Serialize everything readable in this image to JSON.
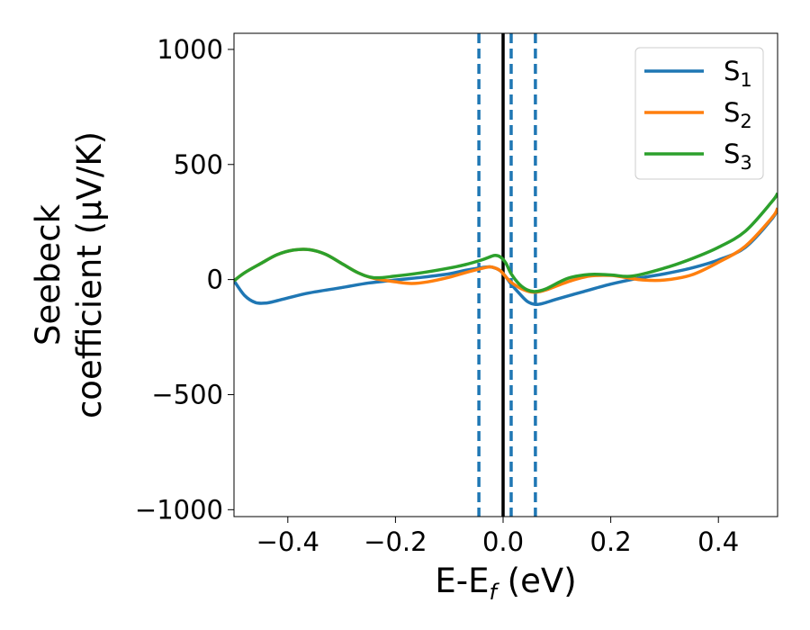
{
  "chart_data": {
    "type": "line",
    "xlabel": {
      "main": "E-E",
      "sub": "f",
      "tail": " (eV)"
    },
    "ylabel": {
      "line1": "Seebeck",
      "line2": "coefficient  (μV/K)"
    },
    "xlim": [
      -0.5,
      0.51
    ],
    "ylim": [
      -1030,
      1070
    ],
    "xticks": [
      {
        "value": -0.4,
        "label": "−0.4"
      },
      {
        "value": -0.2,
        "label": "−0.2"
      },
      {
        "value": 0.0,
        "label": "0.0"
      },
      {
        "value": 0.2,
        "label": "0.2"
      },
      {
        "value": 0.4,
        "label": "0.4"
      }
    ],
    "yticks": [
      {
        "value": 1000,
        "label": "1000"
      },
      {
        "value": 500,
        "label": "500"
      },
      {
        "value": 0,
        "label": "0"
      },
      {
        "value": -500,
        "label": "−500"
      },
      {
        "value": -1000,
        "label": "−1000"
      }
    ],
    "grid": false,
    "legend_position": "top-right",
    "series": [
      {
        "name": "S",
        "sub": "1",
        "color": "#1f77b4",
        "points": [
          [
            -0.5,
            -5
          ],
          [
            -0.48,
            -70
          ],
          [
            -0.46,
            -100
          ],
          [
            -0.44,
            -102
          ],
          [
            -0.42,
            -92
          ],
          [
            -0.4,
            -80
          ],
          [
            -0.36,
            -58
          ],
          [
            -0.3,
            -35
          ],
          [
            -0.25,
            -15
          ],
          [
            -0.2,
            -2
          ],
          [
            -0.15,
            10
          ],
          [
            -0.1,
            25
          ],
          [
            -0.07,
            40
          ],
          [
            -0.04,
            52
          ],
          [
            -0.025,
            55
          ],
          [
            -0.015,
            50
          ],
          [
            -0.005,
            38
          ],
          [
            0.005,
            12
          ],
          [
            0.015,
            -20
          ],
          [
            0.03,
            -60
          ],
          [
            0.045,
            -95
          ],
          [
            0.06,
            -108
          ],
          [
            0.075,
            -103
          ],
          [
            0.1,
            -85
          ],
          [
            0.15,
            -52
          ],
          [
            0.2,
            -20
          ],
          [
            0.25,
            5
          ],
          [
            0.3,
            25
          ],
          [
            0.35,
            50
          ],
          [
            0.4,
            85
          ],
          [
            0.45,
            140
          ],
          [
            0.5,
            265
          ],
          [
            0.51,
            310
          ]
        ]
      },
      {
        "name": "S",
        "sub": "2",
        "color": "#ff7f0e",
        "points": [
          [
            -0.5,
            -5
          ],
          [
            -0.48,
            30
          ],
          [
            -0.45,
            70
          ],
          [
            -0.42,
            108
          ],
          [
            -0.39,
            128
          ],
          [
            -0.36,
            130
          ],
          [
            -0.33,
            110
          ],
          [
            -0.3,
            70
          ],
          [
            -0.27,
            30
          ],
          [
            -0.24,
            5
          ],
          [
            -0.2,
            -10
          ],
          [
            -0.17,
            -17
          ],
          [
            -0.14,
            -10
          ],
          [
            -0.1,
            10
          ],
          [
            -0.07,
            30
          ],
          [
            -0.04,
            48
          ],
          [
            -0.025,
            55
          ],
          [
            -0.015,
            50
          ],
          [
            -0.005,
            38
          ],
          [
            0.005,
            12
          ],
          [
            0.015,
            -12
          ],
          [
            0.03,
            -35
          ],
          [
            0.045,
            -50
          ],
          [
            0.06,
            -55
          ],
          [
            0.08,
            -45
          ],
          [
            0.12,
            -10
          ],
          [
            0.16,
            15
          ],
          [
            0.2,
            18
          ],
          [
            0.23,
            8
          ],
          [
            0.26,
            -2
          ],
          [
            0.3,
            -2
          ],
          [
            0.35,
            20
          ],
          [
            0.4,
            75
          ],
          [
            0.45,
            145
          ],
          [
            0.5,
            270
          ],
          [
            0.51,
            310
          ]
        ]
      },
      {
        "name": "S",
        "sub": "3",
        "color": "#2ca02c",
        "points": [
          [
            -0.5,
            -5
          ],
          [
            -0.48,
            30
          ],
          [
            -0.45,
            70
          ],
          [
            -0.42,
            108
          ],
          [
            -0.39,
            128
          ],
          [
            -0.36,
            130
          ],
          [
            -0.33,
            110
          ],
          [
            -0.3,
            70
          ],
          [
            -0.27,
            30
          ],
          [
            -0.24,
            8
          ],
          [
            -0.2,
            15
          ],
          [
            -0.15,
            30
          ],
          [
            -0.1,
            50
          ],
          [
            -0.07,
            65
          ],
          [
            -0.04,
            85
          ],
          [
            -0.025,
            98
          ],
          [
            -0.015,
            105
          ],
          [
            -0.005,
            98
          ],
          [
            0.005,
            72
          ],
          [
            0.015,
            25
          ],
          [
            0.03,
            -20
          ],
          [
            0.045,
            -45
          ],
          [
            0.06,
            -52
          ],
          [
            0.08,
            -40
          ],
          [
            0.12,
            5
          ],
          [
            0.16,
            22
          ],
          [
            0.2,
            20
          ],
          [
            0.24,
            15
          ],
          [
            0.3,
            50
          ],
          [
            0.35,
            90
          ],
          [
            0.4,
            140
          ],
          [
            0.45,
            210
          ],
          [
            0.5,
            340
          ],
          [
            0.51,
            375
          ]
        ]
      }
    ],
    "vertical_lines": [
      {
        "x": 0.0,
        "color": "#000000",
        "style": "solid"
      },
      {
        "x": -0.045,
        "color": "#1f77b4",
        "style": "dashed"
      },
      {
        "x": 0.015,
        "color": "#1f77b4",
        "style": "dashed"
      },
      {
        "x": 0.06,
        "color": "#1f77b4",
        "style": "dashed"
      }
    ]
  }
}
